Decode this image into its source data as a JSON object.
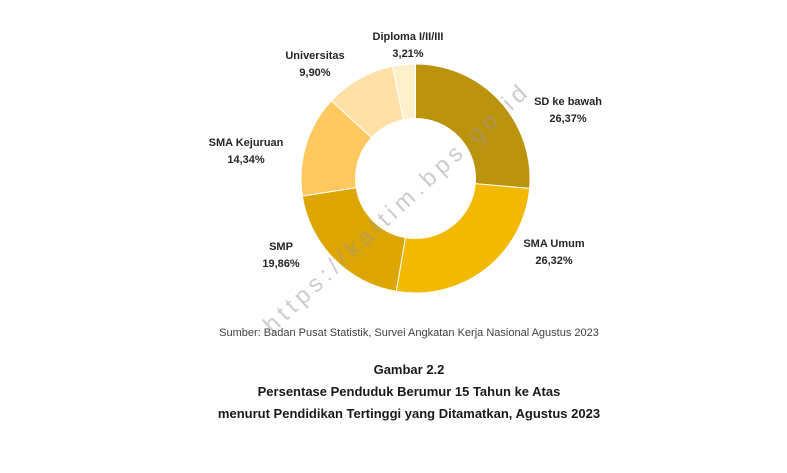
{
  "watermark": "https://kaltim.bps.go.id",
  "chart_data": {
    "type": "pie",
    "donut": true,
    "slices": [
      {
        "label": "SD ke bawah",
        "value": 26.37,
        "value_label": "26,37%",
        "color": "#BC930C"
      },
      {
        "label": "SMA Umum",
        "value": 26.32,
        "value_label": "26,32%",
        "color": "#F3B900"
      },
      {
        "label": "SMP",
        "value": 19.86,
        "value_label": "19,86%",
        "color": "#DCA500"
      },
      {
        "label": "SMA Kejuruan",
        "value": 14.34,
        "value_label": "14,34%",
        "color": "#FFC95F"
      },
      {
        "label": "Universitas",
        "value": 9.9,
        "value_label": "9,90%",
        "color": "#FFE1A8"
      },
      {
        "label": "Diploma I/II/III",
        "value": 3.21,
        "value_label": "3,21%",
        "color": "#FFF0CC"
      }
    ]
  },
  "figure": {
    "source": "Sumber: Badan Pusat Statistik, Survei Angkatan Kerja Nasional Agustus 2023",
    "number": "Gambar 2.2",
    "title_lines": [
      "Persentase Penduduk Berumur 15 Tahun ke Atas",
      "menurut Pendidikan Tertinggi yang Ditamatkan, Agustus 2023"
    ]
  }
}
